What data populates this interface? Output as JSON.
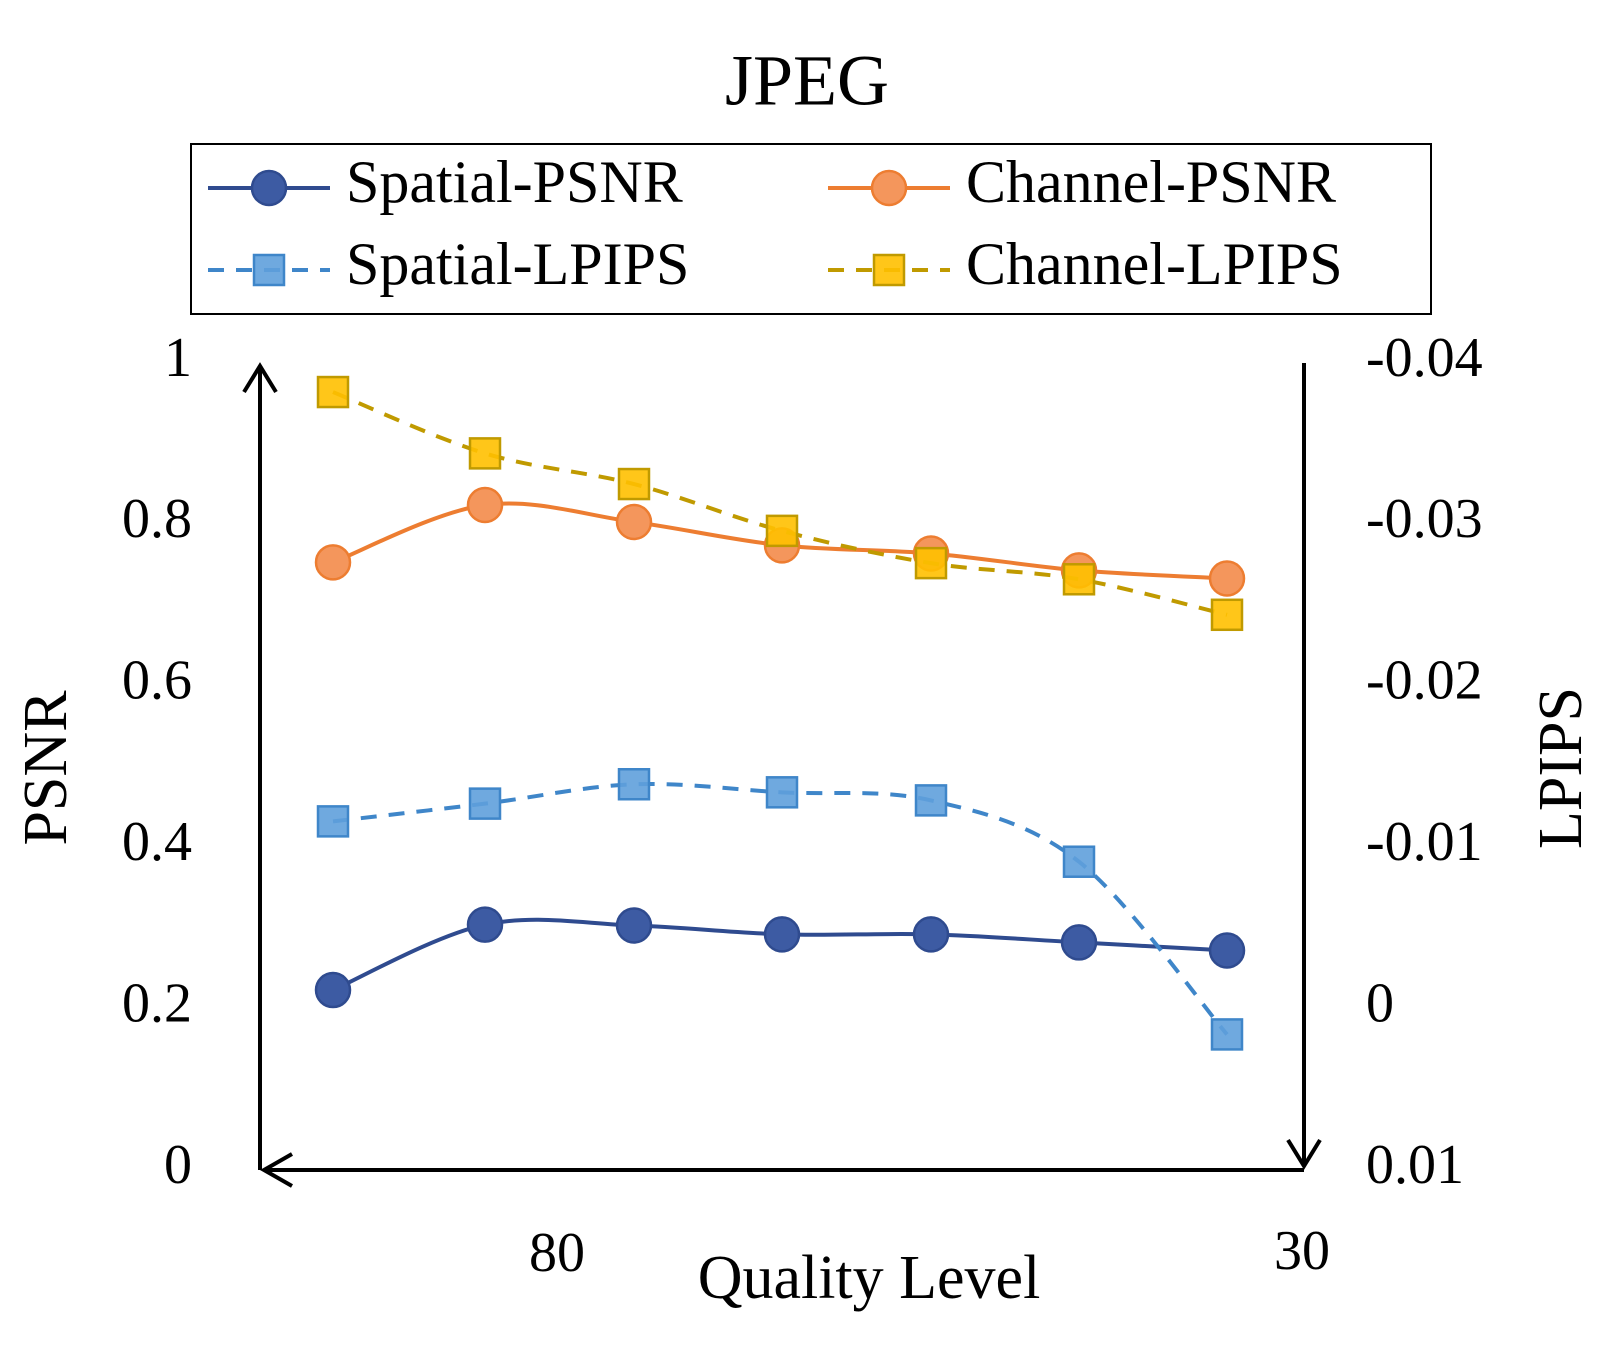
{
  "chart_data": {
    "type": "line",
    "title": "JPEG",
    "x_label": "Quality Level",
    "y_label": "PSNR",
    "y2_label": "LPIPS",
    "x_labels": [
      "80",
      "30"
    ],
    "categories": [
      null,
      null,
      null,
      null,
      null,
      null,
      null
    ],
    "ylim": [
      0,
      1
    ],
    "yticks": [
      0,
      0.2,
      0.4,
      0.6,
      0.8,
      1
    ],
    "y2lim": [
      0.01,
      -0.04
    ],
    "y2ticks": [
      0.01,
      0,
      -0.01,
      -0.02,
      -0.03,
      -0.04
    ],
    "series": [
      {
        "name": "Spatial-PSNR",
        "color": "#2f4b8f",
        "marker": "circle",
        "dash": false,
        "values": [
          0.223,
          0.304,
          0.303,
          0.292,
          0.292,
          0.282,
          0.272
        ]
      },
      {
        "name": "Channel-PSNR",
        "color": "#ed7d31",
        "marker": "circle",
        "dash": false,
        "values": [
          0.753,
          0.824,
          0.803,
          0.774,
          0.764,
          0.743,
          0.733
        ]
      },
      {
        "name": "Spatial-LPIPS",
        "color": "#3f86c9",
        "marker": "square",
        "dash": true,
        "axis": "y2",
        "values": [
          -0.0116,
          -0.0127,
          -0.0139,
          -0.0134,
          -0.0129,
          -0.0091,
          0.0016
        ]
      },
      {
        "name": "Channel-LPIPS",
        "color": "#c09a00",
        "marker": "square",
        "dash": true,
        "axis": "y2",
        "values": [
          -0.0382,
          -0.0344,
          -0.0325,
          -0.0296,
          -0.0276,
          -0.0266,
          -0.0244
        ]
      }
    ]
  }
}
